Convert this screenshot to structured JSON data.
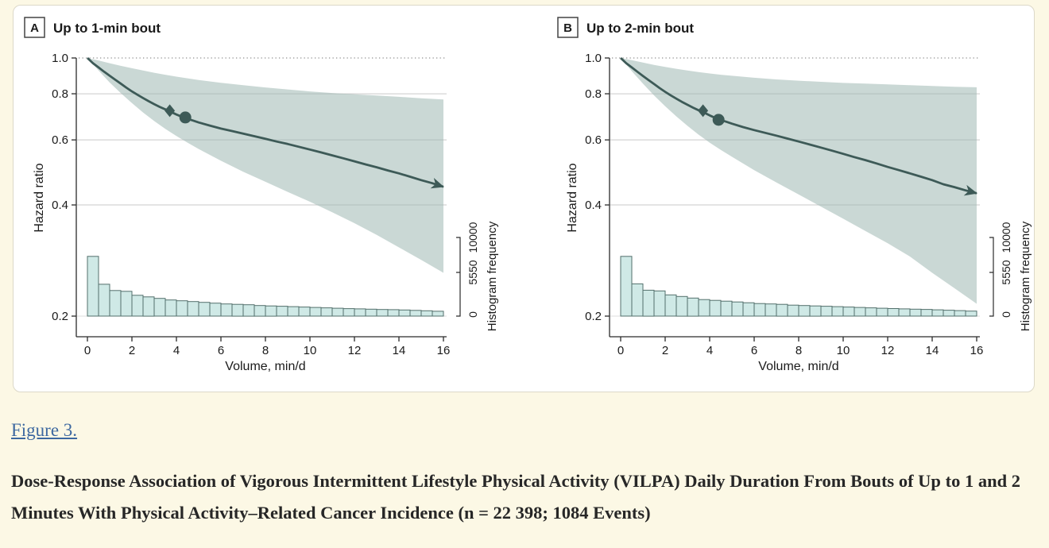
{
  "figure_link": {
    "label": "Figure 3."
  },
  "caption": "Dose-Response Association of Vigorous Intermittent Lifestyle Physical Activity (VILPA) Daily Duration From Bouts of Up to 1 and 2 Minutes With Physical Activity–Related Cancer Incidence (n = 22 398; 1084 Events)",
  "colors": {
    "page_background": "#fcf8e5",
    "card_background": "#ffffff",
    "curve": "#3d5a57",
    "ci_band": "#9fb8b3",
    "histogram_fill": "#cfe9e6",
    "histogram_stroke": "#53706c",
    "gridline": "#c9c9c9",
    "axis": "#2b2b2b",
    "reference_dotted": "#8f8f8f",
    "link": "#3d68a0"
  },
  "chart_data": [
    {
      "type": "line",
      "panel_label": "A",
      "title": "Up to 1-min bout",
      "xlabel": "Volume, min/d",
      "ylabel": "Hazard ratio",
      "ylabel_right": "Histogram frequency",
      "y_scale": "log",
      "xlim": [
        0,
        16
      ],
      "ylim": [
        0.2,
        1.0
      ],
      "x_ticks": [
        0,
        2,
        4,
        6,
        8,
        10,
        12,
        14,
        16
      ],
      "y_tick_labels": [
        "1.0",
        "0.8",
        "0.6",
        "0.4",
        "0.2"
      ],
      "y_ticks": [
        1.0,
        0.8,
        0.6,
        0.4,
        0.2
      ],
      "gridline_values": [
        0.8,
        0.6,
        0.4
      ],
      "reference_line_y": 1.0,
      "freq_tick_labels": [
        "0",
        "5550",
        "10000"
      ],
      "freq_ticks": [
        0,
        5550,
        10000
      ],
      "curve": [
        [
          0,
          1.0
        ],
        [
          0.25,
          0.968
        ],
        [
          0.5,
          0.943
        ],
        [
          0.75,
          0.918
        ],
        [
          1,
          0.895
        ],
        [
          1.25,
          0.873
        ],
        [
          1.5,
          0.852
        ],
        [
          1.75,
          0.831
        ],
        [
          2,
          0.812
        ],
        [
          2.25,
          0.795
        ],
        [
          2.5,
          0.779
        ],
        [
          2.75,
          0.764
        ],
        [
          3,
          0.75
        ],
        [
          3.25,
          0.737
        ],
        [
          3.5,
          0.726
        ],
        [
          3.7,
          0.717
        ],
        [
          4,
          0.703
        ],
        [
          4.4,
          0.687
        ],
        [
          4.75,
          0.677
        ],
        [
          5,
          0.669
        ],
        [
          5.5,
          0.656
        ],
        [
          6,
          0.644
        ],
        [
          6.5,
          0.634
        ],
        [
          7,
          0.624
        ],
        [
          7.5,
          0.614
        ],
        [
          8,
          0.604
        ],
        [
          8.5,
          0.594
        ],
        [
          9,
          0.585
        ],
        [
          9.5,
          0.575
        ],
        [
          10,
          0.565
        ],
        [
          10.5,
          0.555
        ],
        [
          11,
          0.545
        ],
        [
          11.5,
          0.535
        ],
        [
          12,
          0.525
        ],
        [
          12.5,
          0.515
        ],
        [
          13,
          0.506
        ],
        [
          13.5,
          0.496
        ],
        [
          14,
          0.487
        ],
        [
          14.5,
          0.477
        ],
        [
          15,
          0.467
        ],
        [
          15.5,
          0.458
        ],
        [
          16,
          0.448
        ]
      ],
      "ci_upper": [
        [
          0,
          1.0
        ],
        [
          0.5,
          0.985
        ],
        [
          1,
          0.968
        ],
        [
          1.5,
          0.952
        ],
        [
          2,
          0.938
        ],
        [
          2.5,
          0.925
        ],
        [
          3,
          0.912
        ],
        [
          3.5,
          0.901
        ],
        [
          4,
          0.89
        ],
        [
          4.5,
          0.881
        ],
        [
          5,
          0.872
        ],
        [
          6,
          0.857
        ],
        [
          7,
          0.844
        ],
        [
          8,
          0.832
        ],
        [
          9,
          0.822
        ],
        [
          10,
          0.812
        ],
        [
          11,
          0.804
        ],
        [
          12,
          0.797
        ],
        [
          13,
          0.791
        ],
        [
          14,
          0.785
        ],
        [
          15,
          0.778
        ],
        [
          16,
          0.772
        ]
      ],
      "ci_lower": [
        [
          0,
          1.0
        ],
        [
          0.5,
          0.925
        ],
        [
          1,
          0.858
        ],
        [
          1.5,
          0.803
        ],
        [
          2,
          0.755
        ],
        [
          2.5,
          0.712
        ],
        [
          3,
          0.675
        ],
        [
          3.5,
          0.643
        ],
        [
          4,
          0.615
        ],
        [
          4.5,
          0.59
        ],
        [
          5,
          0.567
        ],
        [
          6,
          0.527
        ],
        [
          7,
          0.492
        ],
        [
          8,
          0.462
        ],
        [
          9,
          0.434
        ],
        [
          10,
          0.408
        ],
        [
          11,
          0.382
        ],
        [
          12,
          0.357
        ],
        [
          13,
          0.332
        ],
        [
          14,
          0.307
        ],
        [
          15,
          0.284
        ],
        [
          16,
          0.262
        ]
      ],
      "markers": [
        {
          "shape": "diamond",
          "x": 3.7,
          "hr": 0.72
        },
        {
          "shape": "circle",
          "x": 4.4,
          "hr": 0.69
        }
      ],
      "arrow_end": {
        "x": 16,
        "hr": 0.448
      },
      "histogram": {
        "bin_start": 0,
        "bin_width": 0.5,
        "frequencies": [
          7600,
          4050,
          3250,
          3150,
          2650,
          2450,
          2250,
          2050,
          1950,
          1850,
          1750,
          1650,
          1550,
          1500,
          1450,
          1350,
          1300,
          1250,
          1200,
          1150,
          1100,
          1050,
          1000,
          950,
          920,
          880,
          840,
          820,
          780,
          730,
          680,
          620
        ]
      }
    },
    {
      "type": "line",
      "panel_label": "B",
      "title": "Up to 2-min bout",
      "xlabel": "Volume, min/d",
      "ylabel": "Hazard ratio",
      "ylabel_right": "Histogram frequency",
      "y_scale": "log",
      "xlim": [
        0,
        16
      ],
      "ylim": [
        0.2,
        1.0
      ],
      "x_ticks": [
        0,
        2,
        4,
        6,
        8,
        10,
        12,
        14,
        16
      ],
      "y_tick_labels": [
        "1.0",
        "0.8",
        "0.6",
        "0.4",
        "0.2"
      ],
      "y_ticks": [
        1.0,
        0.8,
        0.6,
        0.4,
        0.2
      ],
      "gridline_values": [
        0.8,
        0.6,
        0.4
      ],
      "reference_line_y": 1.0,
      "freq_tick_labels": [
        "0",
        "5550",
        "10000"
      ],
      "freq_ticks": [
        0,
        5550,
        10000
      ],
      "curve": [
        [
          0,
          1.0
        ],
        [
          0.25,
          0.968
        ],
        [
          0.5,
          0.943
        ],
        [
          0.75,
          0.918
        ],
        [
          1,
          0.894
        ],
        [
          1.25,
          0.872
        ],
        [
          1.5,
          0.85
        ],
        [
          1.75,
          0.829
        ],
        [
          2,
          0.81
        ],
        [
          2.25,
          0.792
        ],
        [
          2.5,
          0.776
        ],
        [
          2.75,
          0.761
        ],
        [
          3,
          0.747
        ],
        [
          3.25,
          0.734
        ],
        [
          3.5,
          0.722
        ],
        [
          3.7,
          0.714
        ],
        [
          4,
          0.699
        ],
        [
          4.4,
          0.682
        ],
        [
          4.75,
          0.672
        ],
        [
          5,
          0.664
        ],
        [
          5.5,
          0.65
        ],
        [
          6,
          0.638
        ],
        [
          6.5,
          0.627
        ],
        [
          7,
          0.616
        ],
        [
          7.5,
          0.605
        ],
        [
          8,
          0.594
        ],
        [
          8.5,
          0.583
        ],
        [
          9,
          0.572
        ],
        [
          9.5,
          0.561
        ],
        [
          10,
          0.55
        ],
        [
          10.5,
          0.539
        ],
        [
          11,
          0.529
        ],
        [
          11.5,
          0.518
        ],
        [
          12,
          0.507
        ],
        [
          12.5,
          0.497
        ],
        [
          13,
          0.487
        ],
        [
          13.5,
          0.477
        ],
        [
          14,
          0.467
        ],
        [
          14.5,
          0.455
        ],
        [
          15,
          0.447
        ],
        [
          15.5,
          0.438
        ],
        [
          16,
          0.43
        ]
      ],
      "ci_upper": [
        [
          0,
          1.0
        ],
        [
          0.5,
          0.986
        ],
        [
          1,
          0.972
        ],
        [
          1.5,
          0.958
        ],
        [
          2,
          0.946
        ],
        [
          2.5,
          0.935
        ],
        [
          3,
          0.925
        ],
        [
          3.5,
          0.916
        ],
        [
          4,
          0.908
        ],
        [
          4.5,
          0.901
        ],
        [
          5,
          0.895
        ],
        [
          6,
          0.884
        ],
        [
          7,
          0.875
        ],
        [
          8,
          0.868
        ],
        [
          9,
          0.862
        ],
        [
          10,
          0.856
        ],
        [
          11,
          0.852
        ],
        [
          12,
          0.848
        ],
        [
          13,
          0.844
        ],
        [
          14,
          0.84
        ],
        [
          15,
          0.836
        ],
        [
          16,
          0.833
        ]
      ],
      "ci_lower": [
        [
          0,
          1.0
        ],
        [
          0.5,
          0.921
        ],
        [
          1,
          0.852
        ],
        [
          1.5,
          0.792
        ],
        [
          2,
          0.74
        ],
        [
          2.5,
          0.695
        ],
        [
          3,
          0.655
        ],
        [
          3.5,
          0.62
        ],
        [
          4,
          0.59
        ],
        [
          4.5,
          0.564
        ],
        [
          5,
          0.54
        ],
        [
          6,
          0.497
        ],
        [
          7,
          0.46
        ],
        [
          8,
          0.427
        ],
        [
          9,
          0.396
        ],
        [
          10,
          0.367
        ],
        [
          11,
          0.34
        ],
        [
          12,
          0.315
        ],
        [
          13,
          0.29
        ],
        [
          14,
          0.262
        ],
        [
          15,
          0.238
        ],
        [
          16,
          0.216
        ]
      ],
      "markers": [
        {
          "shape": "diamond",
          "x": 3.7,
          "hr": 0.72
        },
        {
          "shape": "circle",
          "x": 4.4,
          "hr": 0.68
        }
      ],
      "arrow_end": {
        "x": 16,
        "hr": 0.43
      },
      "histogram": {
        "bin_start": 0,
        "bin_width": 0.5,
        "frequencies": [
          7600,
          4100,
          3300,
          3200,
          2700,
          2500,
          2300,
          2100,
          2000,
          1900,
          1800,
          1700,
          1600,
          1550,
          1500,
          1400,
          1350,
          1300,
          1250,
          1200,
          1150,
          1100,
          1050,
          1000,
          960,
          920,
          880,
          850,
          800,
          750,
          700,
          640
        ]
      }
    }
  ]
}
